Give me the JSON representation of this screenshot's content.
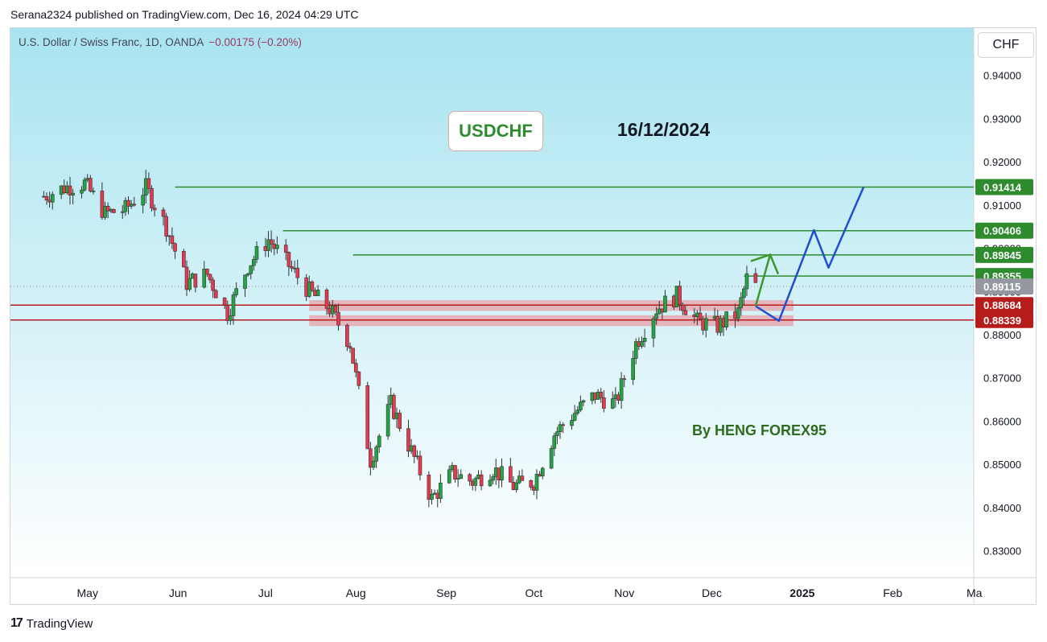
{
  "caption": "Serana2324 published on TradingView.com, Dec 16, 2024 04:29 UTC",
  "symbol": {
    "name": "U.S. Dollar / Swiss Franc, 1D, OANDA",
    "change": "−0.00175 (−0.20%)"
  },
  "price_scale_title": "CHF",
  "annotations": {
    "pair": "USDCHF",
    "date": "16/12/2024",
    "author": "By HENG FOREX95"
  },
  "footer": {
    "logo": "17",
    "brand": "TradingView"
  },
  "colors": {
    "up": "#22a543",
    "down": "#e8384f",
    "resistance": "#2e8b2e",
    "support": "#b71c1c",
    "zone": "#e8a0a8",
    "forecast_blue": "#1f4fd1",
    "forecast_green": "#3a9a2c",
    "bg_top": "#a8e4f0",
    "bg_bottom": "#ffffff"
  },
  "chart_data": {
    "type": "candlestick",
    "y_ticks": [
      "0.94000",
      "0.93000",
      "0.92000",
      "0.91000",
      "0.90000",
      "0.89000",
      "0.88000",
      "0.87000",
      "0.86000",
      "0.85000",
      "0.84000",
      "0.83000"
    ],
    "x_labels": [
      "May",
      "Jun",
      "Jul",
      "Aug",
      "Sep",
      "Oct",
      "Nov",
      "Dec",
      "2025",
      "Feb",
      "Ma"
    ],
    "ylim": [
      0.8238,
      0.9509
    ],
    "last_price": "0.89115",
    "levels": [
      {
        "label": "0.91414",
        "value": 0.91414,
        "kind": "resistance"
      },
      {
        "label": "0.90406",
        "value": 0.90406,
        "kind": "resistance"
      },
      {
        "label": "0.89845",
        "value": 0.89845,
        "kind": "resistance"
      },
      {
        "label": "0.89355",
        "value": 0.89355,
        "kind": "resistance"
      },
      {
        "label": "0.88684",
        "value": 0.88684,
        "kind": "support"
      },
      {
        "label": "0.88339",
        "value": 0.88339,
        "kind": "support"
      }
    ],
    "support_zones": [
      {
        "from": 0.8855,
        "to": 0.888
      },
      {
        "from": 0.882,
        "to": 0.8845
      }
    ],
    "close_path": [
      [
        "2024-04-16",
        0.912
      ],
      [
        "2024-04-23",
        0.914
      ],
      [
        "2024-04-30",
        0.915
      ],
      [
        "2024-05-07",
        0.908
      ],
      [
        "2024-05-14",
        0.909
      ],
      [
        "2024-05-21",
        0.914
      ],
      [
        "2024-05-28",
        0.905
      ],
      [
        "2024-06-04",
        0.892
      ],
      [
        "2024-06-11",
        0.894
      ],
      [
        "2024-06-18",
        0.885
      ],
      [
        "2024-06-25",
        0.896
      ],
      [
        "2024-07-02",
        0.902
      ],
      [
        "2024-07-09",
        0.896
      ],
      [
        "2024-07-16",
        0.89
      ],
      [
        "2024-07-23",
        0.886
      ],
      [
        "2024-07-30",
        0.878
      ],
      [
        "2024-08-06",
        0.851
      ],
      [
        "2024-08-13",
        0.864
      ],
      [
        "2024-08-20",
        0.853
      ],
      [
        "2024-08-27",
        0.842
      ],
      [
        "2024-09-03",
        0.848
      ],
      [
        "2024-09-10",
        0.846
      ],
      [
        "2024-09-17",
        0.849
      ],
      [
        "2024-09-24",
        0.845
      ],
      [
        "2024-10-01",
        0.846
      ],
      [
        "2024-10-08",
        0.857
      ],
      [
        "2024-10-15",
        0.862
      ],
      [
        "2024-10-22",
        0.866
      ],
      [
        "2024-10-29",
        0.864
      ],
      [
        "2024-11-05",
        0.878
      ],
      [
        "2024-11-12",
        0.886
      ],
      [
        "2024-11-19",
        0.889
      ],
      [
        "2024-11-26",
        0.883
      ],
      [
        "2024-12-03",
        0.882
      ],
      [
        "2024-12-10",
        0.885
      ],
      [
        "2024-12-13",
        0.893
      ],
      [
        "2024-12-16",
        0.8912
      ]
    ],
    "forecast_blue": [
      [
        "2024-12-16",
        0.8866
      ],
      [
        "2024-12-24",
        0.8832
      ],
      [
        "2025-01-05",
        0.9042
      ],
      [
        "2025-01-10",
        0.8955
      ],
      [
        "2025-01-22",
        0.9141
      ]
    ],
    "forecast_green": [
      [
        "2024-12-16",
        0.8866
      ],
      [
        "2024-12-21",
        0.8985
      ]
    ]
  }
}
